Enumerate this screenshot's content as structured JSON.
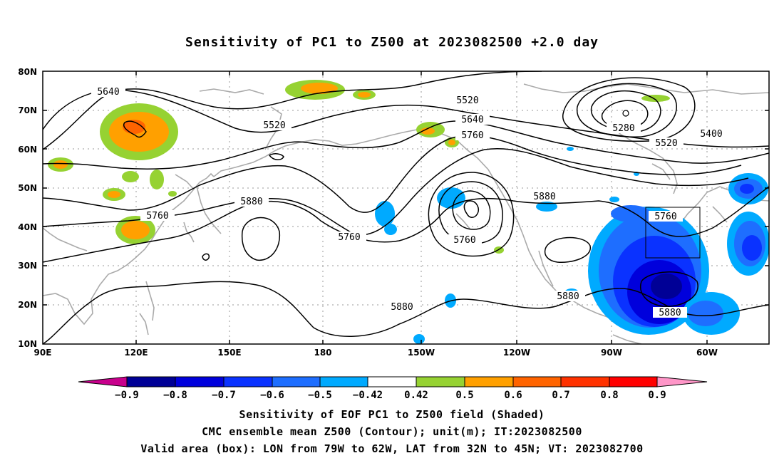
{
  "title": "Sensitivity of PC1 to Z500 at 2023082500 +2.0 day",
  "axes": {
    "lat_ticks": [
      "80N",
      "70N",
      "60N",
      "50N",
      "40N",
      "30N",
      "20N",
      "10N"
    ],
    "lon_ticks": [
      "90E",
      "120E",
      "150E",
      "180",
      "150W",
      "120W",
      "90W",
      "60W"
    ],
    "lon_range": [
      "90E",
      "50W"
    ],
    "lat_range": [
      "10N",
      "80N"
    ]
  },
  "contours": {
    "labels": [
      "5640",
      "5520",
      "5520",
      "5640",
      "5760",
      "5280",
      "5400",
      "5520",
      "5760",
      "5880",
      "5760",
      "5760",
      "5880",
      "5880",
      "5880",
      "5880",
      "5760"
    ]
  },
  "valid_box": {
    "lon": [
      -79,
      -62
    ],
    "lat": [
      32,
      45
    ]
  },
  "colorbar": {
    "labels": [
      "−0.9",
      "−0.8",
      "−0.7",
      "−0.6",
      "−0.5",
      "−0.42",
      "0.42",
      "0.5",
      "0.6",
      "0.7",
      "0.8",
      "0.9"
    ],
    "colors": [
      "#c8008c",
      "#000096",
      "#0000dc",
      "#0a32ff",
      "#1e6eff",
      "#00aaff",
      "#00d2ff",
      "#ffffff",
      "#96d232",
      "#ffa000",
      "#ff6400",
      "#ff3200",
      "#ff0000",
      "#ff96c8"
    ]
  },
  "captions": {
    "line1": "Sensitivity of EOF PC1 to Z500 field (Shaded)",
    "line2": "CMC ensemble mean Z500 (Contour); unit(m); IT:2023082500",
    "line3": "Valid area (box): LON from 79W to 62W, LAT from 32N to 45N; VT: 2023082700"
  }
}
